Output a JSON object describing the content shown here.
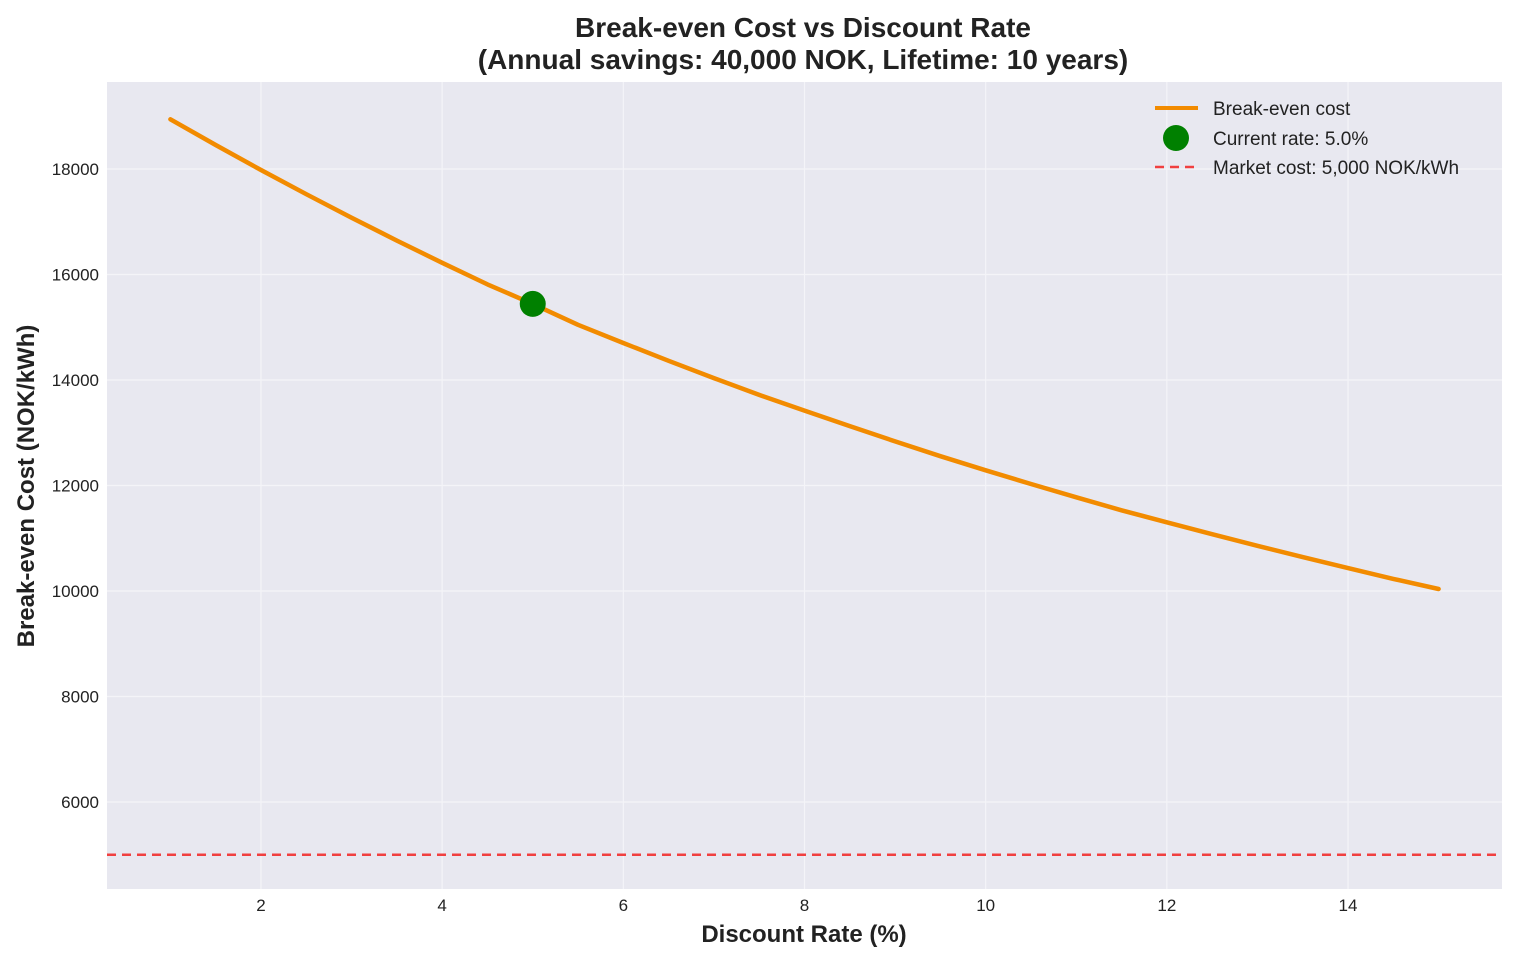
{
  "chart_data": {
    "type": "line",
    "title_line1": "Break-even Cost vs Discount Rate",
    "title_line2": "(Annual savings: 40,000 NOK, Lifetime: 10 years)",
    "xlabel": "Discount Rate (%)",
    "ylabel": "Break-even Cost (NOK/kWh)",
    "xlim": [
      0.3,
      15.7
    ],
    "ylim": [
      4350,
      19650
    ],
    "xticks": [
      2,
      4,
      6,
      8,
      10,
      12,
      14
    ],
    "yticks": [
      6000,
      8000,
      10000,
      12000,
      14000,
      16000,
      18000
    ],
    "grid": true,
    "legend_position": "top-right",
    "series": [
      {
        "name": "Break-even cost",
        "kind": "line",
        "color": "#f28b00",
        "x": [
          1,
          1.5,
          2,
          2.5,
          3,
          3.5,
          4,
          4.5,
          5,
          5.5,
          6,
          6.5,
          7,
          7.5,
          8,
          8.5,
          9,
          9.5,
          10,
          10.5,
          11,
          11.5,
          12,
          12.5,
          13,
          13.5,
          14,
          14.5,
          15
        ],
        "y": [
          18943,
          18455,
          17982,
          17522,
          17078,
          16643,
          16222,
          15813,
          15443,
          15046,
          14702,
          14364,
          14036,
          13717,
          13420,
          13126,
          12836,
          12555,
          12289,
          12029,
          11776,
          11530,
          11303,
          11077,
          10857,
          10642,
          10434,
          10230,
          10037
        ]
      },
      {
        "name": "Current rate: 5.0%",
        "kind": "point",
        "color": "#008000",
        "x": [
          5
        ],
        "y": [
          15443
        ]
      },
      {
        "name": "Market cost: 5,000 NOK/kWh",
        "kind": "hline",
        "color": "#f04040",
        "y": [
          5000
        ]
      }
    ],
    "colors": {
      "plot_background": "#e8e8f0",
      "grid": "#f4f4f8"
    }
  }
}
